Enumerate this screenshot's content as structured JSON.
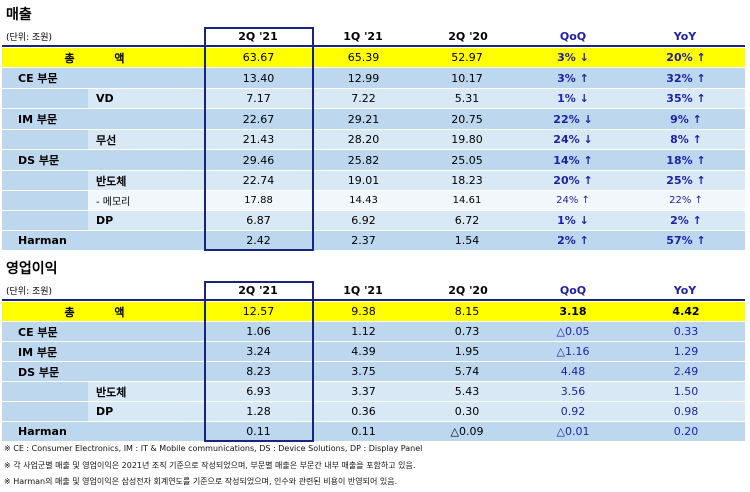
{
  "revenue": {
    "title": "매출",
    "unit": "(단위: 조원)",
    "headers": [
      "2Q '21",
      "1Q '21",
      "2Q '20",
      "QoQ",
      "YoY"
    ],
    "rows": [
      {
        "label": "총    액",
        "v": [
          "63.67",
          "65.39",
          "52.97",
          "3% ↓",
          "20% ↑"
        ],
        "kind": "total"
      },
      {
        "label": "CE 부문",
        "v": [
          "13.40",
          "12.99",
          "10.17",
          "3% ↑",
          "32% ↑"
        ],
        "kind": "main"
      },
      {
        "label": "VD",
        "v": [
          "7.17",
          "7.22",
          "5.31",
          "1% ↓",
          "35% ↑"
        ],
        "kind": "sub"
      },
      {
        "label": "IM 부문",
        "v": [
          "22.67",
          "29.21",
          "20.75",
          "22% ↓",
          "9% ↑"
        ],
        "kind": "main"
      },
      {
        "label": "무선",
        "v": [
          "21.43",
          "28.20",
          "19.80",
          "24% ↓",
          "8% ↑"
        ],
        "kind": "sub"
      },
      {
        "label": "DS 부문",
        "v": [
          "29.46",
          "25.82",
          "25.05",
          "14% ↑",
          "18% ↑"
        ],
        "kind": "main"
      },
      {
        "label": "반도체",
        "v": [
          "22.74",
          "19.01",
          "18.23",
          "20% ↑",
          "25% ↑"
        ],
        "kind": "sub"
      },
      {
        "label": "- 메모리",
        "v": [
          "17.88",
          "14.43",
          "14.61",
          "24% ↑",
          "22% ↑"
        ],
        "kind": "minor"
      },
      {
        "label": "DP",
        "v": [
          "6.87",
          "6.92",
          "6.72",
          "1% ↓",
          "2% ↑"
        ],
        "kind": "sub"
      },
      {
        "label": "Harman",
        "v": [
          "2.42",
          "2.37",
          "1.54",
          "2% ↑",
          "57% ↑"
        ],
        "kind": "main"
      }
    ]
  },
  "op_profit": {
    "title": "영업이익",
    "unit": "(단위: 조원)",
    "headers": [
      "2Q '21",
      "1Q '21",
      "2Q '20",
      "QoQ",
      "YoY"
    ],
    "rows": [
      {
        "label": "총    액",
        "v": [
          "12.57",
          "9.38",
          "8.15",
          "3.18",
          "4.42"
        ],
        "kind": "total"
      },
      {
        "label": "CE 부문",
        "v": [
          "1.06",
          "1.12",
          "0.73",
          "△0.05",
          "0.33"
        ],
        "kind": "main"
      },
      {
        "label": "IM 부문",
        "v": [
          "3.24",
          "4.39",
          "1.95",
          "△1.16",
          "1.29"
        ],
        "kind": "main"
      },
      {
        "label": "DS 부문",
        "v": [
          "8.23",
          "3.75",
          "5.74",
          "4.48",
          "2.49"
        ],
        "kind": "main"
      },
      {
        "label": "반도체",
        "v": [
          "6.93",
          "3.37",
          "5.43",
          "3.56",
          "1.50"
        ],
        "kind": "sub"
      },
      {
        "label": "DP",
        "v": [
          "1.28",
          "0.36",
          "0.30",
          "0.92",
          "0.98"
        ],
        "kind": "sub"
      },
      {
        "label": "Harman",
        "v": [
          "0.11",
          "0.11",
          "△0.09",
          "△0.01",
          "0.20"
        ],
        "kind": "main"
      }
    ]
  },
  "footnotes": [
    "※ CE : Consumer Electronics,  IM : IT & Mobile communications,  DS : Device Solutions,  DP : Display Panel",
    "※ 각 사업군별 매출 및 영업이익은 2021년 조직 기준으로 작성되었으며, 부문별 매출은 부문간 내부 매출을 포함하고 있음.",
    "※ Harman의 매출 및 영업이익은 삼성전자 회계연도를 기준으로 작성되었으며, 인수와 관련된 비용이 반영되어 있음."
  ],
  "colors": {
    "total": "#ffff00",
    "main": "#bcd7ee",
    "sub": "#d9e8f5",
    "minor": "#f2f7fc",
    "text_blue": "#1f1fa6",
    "frame": "#1a237e"
  }
}
